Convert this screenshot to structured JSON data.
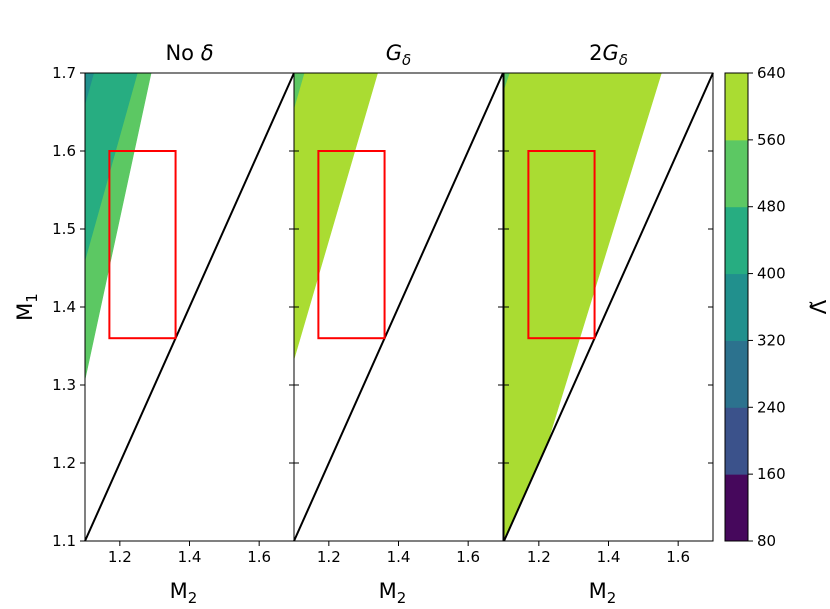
{
  "chart_data": {
    "type": "heatmap",
    "layout": "three panels sharing y axis, one colorbar on the right",
    "panels": [
      {
        "title": "No δ",
        "title_text": "No ",
        "title_symbol": "δ",
        "title_sub": "",
        "xlabel": "M",
        "xlabel_sub": "2",
        "bands": [
          {
            "level": 560,
            "line": "M1 = -0.5 + 1.6*M2"
          },
          {
            "level": 480,
            "line": "M1 = -0.3 + 1.6*M2"
          },
          {
            "level": 400,
            "line": "M1 = -0.1 + 1.6*M2"
          },
          {
            "level": 320,
            "line": "M1 = 0.13 + 1.6*M2"
          },
          {
            "level": 240,
            "line": "M1 = 0.4 + 1.6*M2"
          },
          {
            "level": 160,
            "line": "M1 = 0.72 + 1.6*M2"
          }
        ],
        "cutoff_line": "M1 = -0.97 + 2.07*M2",
        "region_rect": {
          "m2": [
            1.17,
            1.36
          ],
          "m1": [
            1.36,
            1.6
          ]
        }
      },
      {
        "title": "Gδ",
        "title_text": "",
        "title_symbol": "G",
        "title_sub": "δ",
        "xlabel": "M",
        "xlabel_sub": "2",
        "bands": [
          {
            "level": 560,
            "line": "M1 = -0.05 + 1.55*M2"
          },
          {
            "level": 480,
            "line": "M1 = 0.1 + 1.55*M2"
          },
          {
            "level": 400,
            "line": "M1 = 0.3 + 1.55*M2"
          },
          {
            "level": 320,
            "line": "M1 = 0.55 + 1.55*M2"
          },
          {
            "level": 240,
            "line": "M1 = 0.85 + 1.55*M2"
          },
          {
            "level": 160,
            "line": "M1 = 1.25 + 1.55*M2"
          }
        ],
        "cutoff_line": "M1 = -0.35 + 1.53*M2",
        "region_rect": {
          "m2": [
            1.17,
            1.36
          ],
          "m1": [
            1.36,
            1.6
          ]
        }
      },
      {
        "title": "2Gδ",
        "title_text": "2",
        "title_symbol": "G",
        "title_sub": "δ",
        "xlabel": "M",
        "xlabel_sub": "2",
        "bands": [
          {
            "level": 560,
            "line": "M1 = 0.25 + 1.3*M2"
          },
          {
            "level": 480,
            "line": "M1 = 0.46 + 1.3*M2"
          },
          {
            "level": 400,
            "line": "M1 = 0.68 + 1.3*M2"
          },
          {
            "level": 320,
            "line": "M1 = 0.95 + 1.3*M2"
          },
          {
            "level": 240,
            "line": "M1 = 1.3 + 1.3*M2"
          },
          {
            "level": 160,
            "line": "M1 = 1.7 + 1.3*M2"
          }
        ],
        "cutoff_line": "M1 = -0.55 + 1.45*M2",
        "region_rect": {
          "m2": [
            1.17,
            1.36
          ],
          "m1": [
            1.36,
            1.6
          ]
        }
      }
    ],
    "xlim": [
      1.1,
      1.7
    ],
    "ylim": [
      1.1,
      1.7
    ],
    "xticks": [
      "1.2",
      "1.4",
      "1.6"
    ],
    "yticks": [
      "1.1",
      "1.2",
      "1.3",
      "1.4",
      "1.5",
      "1.6",
      "1.7"
    ],
    "ylabel": "M",
    "ylabel_sub": "1",
    "colorbar": {
      "label": "Λ̃",
      "ticks": [
        "80",
        "160",
        "240",
        "320",
        "400",
        "480",
        "560",
        "640"
      ],
      "levels": [
        80,
        160,
        240,
        320,
        400,
        480,
        560,
        640
      ],
      "colors": [
        "#46085c",
        "#3b528b",
        "#2c728e",
        "#21908d",
        "#27ad81",
        "#5cc863",
        "#aadc32",
        "#d8e219"
      ]
    },
    "region_rect_color": "#ff0000",
    "edge_line_color": "#000000"
  }
}
